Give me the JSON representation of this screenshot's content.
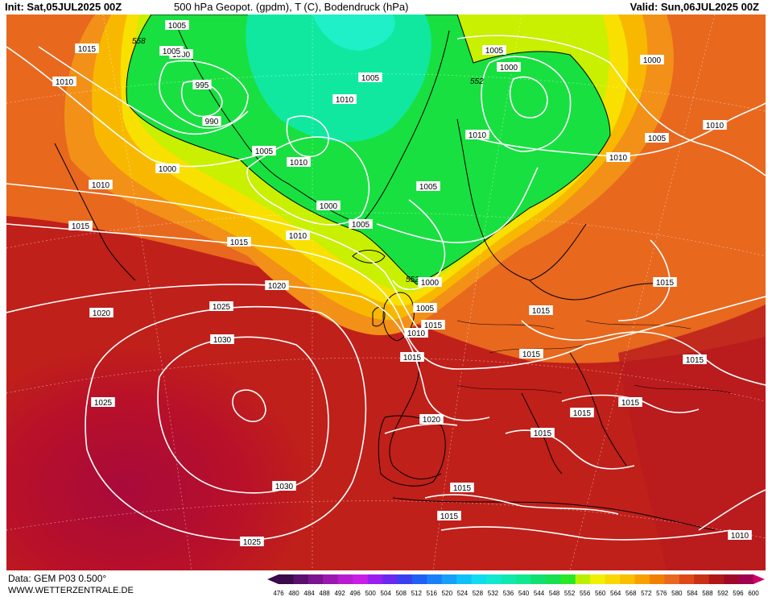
{
  "header": {
    "init": "Init: Sat,05JUL2025 00Z",
    "title": "500 hPa Geopot. (gpdm), T (C), Bodendruck (hPa)",
    "valid": "Valid: Sun,06JUL2025 00Z"
  },
  "footer": {
    "data_source": "Data: GEM P03 0.500°",
    "website": "WWW.WETTERZENTRALE.DE"
  },
  "legend": {
    "ticks": [
      "476",
      "480",
      "484",
      "488",
      "492",
      "496",
      "500",
      "504",
      "508",
      "512",
      "516",
      "520",
      "524",
      "528",
      "532",
      "536",
      "540",
      "544",
      "548",
      "552",
      "556",
      "560",
      "564",
      "568",
      "572",
      "576",
      "580",
      "584",
      "588",
      "592",
      "596",
      "600"
    ],
    "colors": [
      "#3a0a4a",
      "#5a0f6e",
      "#7a1490",
      "#9a18b0",
      "#b81cd0",
      "#c81ee8",
      "#9a1ef0",
      "#6a28f0",
      "#3a40f0",
      "#2060f5",
      "#1a80f8",
      "#18a0f8",
      "#10c0f8",
      "#10dcf0",
      "#10e8d0",
      "#10e8b0",
      "#10e890",
      "#10e070",
      "#18e050",
      "#28e828",
      "#b8f000",
      "#f0f000",
      "#f8d800",
      "#f8c000",
      "#f8a000",
      "#f08000",
      "#e86820",
      "#e04818",
      "#c83018",
      "#b01818",
      "#a00828",
      "#a00050"
    ]
  },
  "map_colors": {
    "ocean_high": "#a80a3a",
    "subtropics": "#c0201a",
    "mid_latitude": "#e8681e",
    "warm_band": "#f8b000",
    "yellow_band": "#f8e000",
    "trough": "#18e050",
    "trough_core": "#10e8a0",
    "isobar": "#ffffff",
    "coast": "#000000"
  },
  "geopot_labels": [
    {
      "id": "g558",
      "text": "558"
    },
    {
      "id": "g552a",
      "text": "552"
    },
    {
      "id": "g552b",
      "text": "552"
    }
  ],
  "isobar_labels": [
    {
      "id": "i1",
      "text": "1005"
    },
    {
      "id": "i2",
      "text": "1015"
    },
    {
      "id": "i3",
      "text": "1000"
    },
    {
      "id": "i4",
      "text": "1010"
    },
    {
      "id": "i5",
      "text": "995"
    },
    {
      "id": "i6",
      "text": "990"
    },
    {
      "id": "i7",
      "text": "1005"
    },
    {
      "id": "i8",
      "text": "1005"
    },
    {
      "id": "i9",
      "text": "1010"
    },
    {
      "id": "i10",
      "text": "1000"
    },
    {
      "id": "i11",
      "text": "1010"
    },
    {
      "id": "i12",
      "text": "1015"
    },
    {
      "id": "i13",
      "text": "1000"
    },
    {
      "id": "i14",
      "text": "1005"
    },
    {
      "id": "i15",
      "text": "1010"
    },
    {
      "id": "i16",
      "text": "1015"
    },
    {
      "id": "i17",
      "text": "1020"
    },
    {
      "id": "i18",
      "text": "1020"
    },
    {
      "id": "i19",
      "text": "1025"
    },
    {
      "id": "i20",
      "text": "1030"
    },
    {
      "id": "i21",
      "text": "1025"
    },
    {
      "id": "i22",
      "text": "1030"
    },
    {
      "id": "i23",
      "text": "1025"
    },
    {
      "id": "i24",
      "text": "1005"
    },
    {
      "id": "i25",
      "text": "1010"
    },
    {
      "id": "i26",
      "text": "1000"
    },
    {
      "id": "i27",
      "text": "1005"
    },
    {
      "id": "i28",
      "text": "1010"
    },
    {
      "id": "i29",
      "text": "1015"
    },
    {
      "id": "i30",
      "text": "1020"
    },
    {
      "id": "i31",
      "text": "1005"
    },
    {
      "id": "i32",
      "text": "1000"
    },
    {
      "id": "i33",
      "text": "1010"
    },
    {
      "id": "i34",
      "text": "1005"
    },
    {
      "id": "i35",
      "text": "1000"
    },
    {
      "id": "i36",
      "text": "1010"
    },
    {
      "id": "i37",
      "text": "1005"
    },
    {
      "id": "i38",
      "text": "1010"
    },
    {
      "id": "i39",
      "text": "1015"
    },
    {
      "id": "i40",
      "text": "1015"
    },
    {
      "id": "i41",
      "text": "1015"
    },
    {
      "id": "i42",
      "text": "1015"
    },
    {
      "id": "i43",
      "text": "1015"
    },
    {
      "id": "i44",
      "text": "1015"
    },
    {
      "id": "i45",
      "text": "1015"
    },
    {
      "id": "i46",
      "text": "1015"
    },
    {
      "id": "i47",
      "text": "1015"
    },
    {
      "id": "i48",
      "text": "1010"
    },
    {
      "id": "i49",
      "text": "1015"
    }
  ]
}
